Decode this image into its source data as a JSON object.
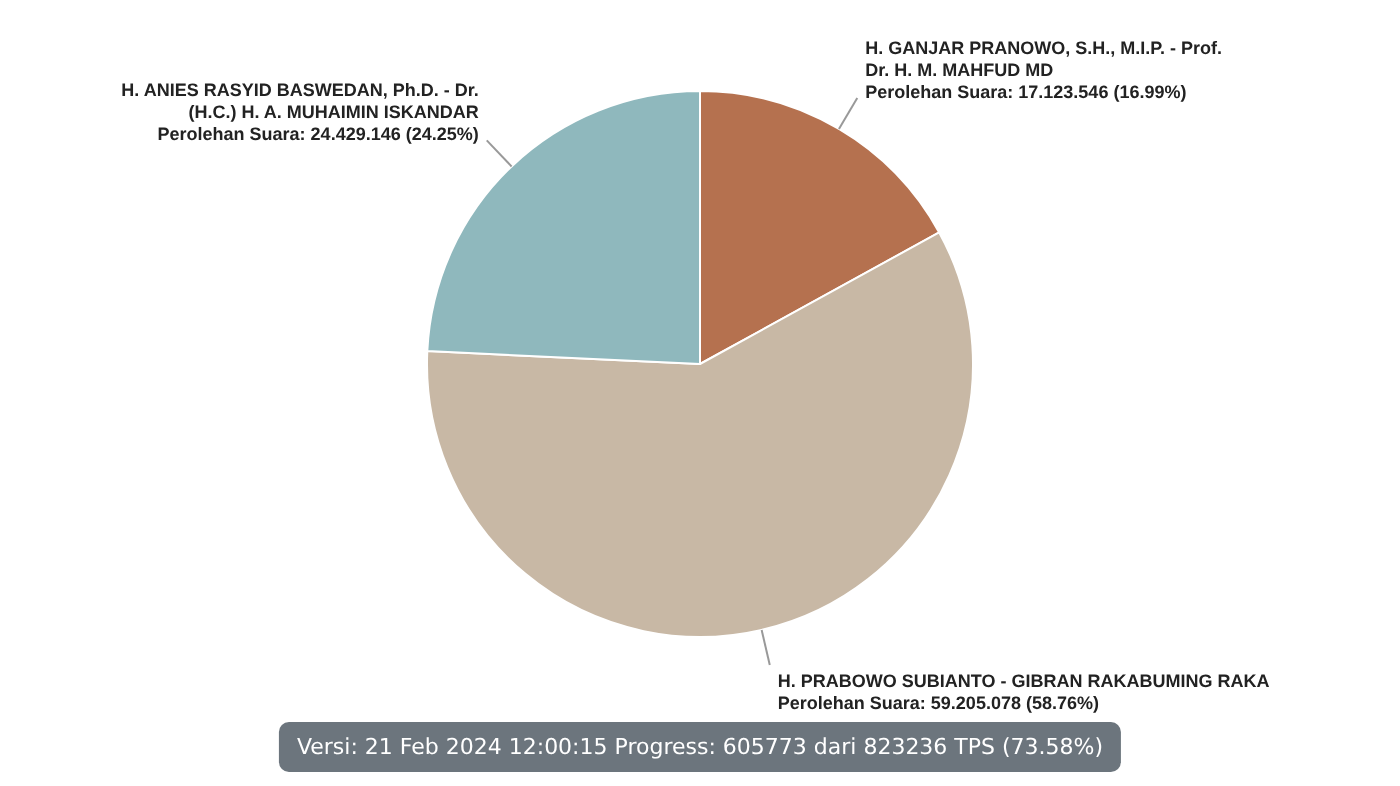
{
  "chart_data": {
    "type": "pie",
    "categories": [
      "H. GANJAR PRANOWO, S.H., M.I.P. - Prof. Dr. H. M. MAHFUD MD",
      "H. PRABOWO SUBIANTO - GIBRAN RAKABUMING RAKA",
      "H. ANIES RASYID BASWEDAN, Ph.D. - Dr. (H.C.) H. A. MUHAIMIN ISKANDAR"
    ],
    "values": [
      17123546,
      59205078,
      24429146
    ],
    "value_labels": [
      "Perolehan Suara: 17.123.546 (16.99%)",
      "Perolehan Suara: 59.205.078 (58.76%)",
      "Perolehan Suara: 24.429.146 (24.25%)"
    ],
    "colors": [
      "#b5714f",
      "#c8b8a5",
      "#8fb8bd"
    ],
    "annotations": [
      "Versi: 21 Feb 2024 12:00:15 Progress: 605773 dari 823236 TPS (73.58%)"
    ],
    "legend": false
  }
}
